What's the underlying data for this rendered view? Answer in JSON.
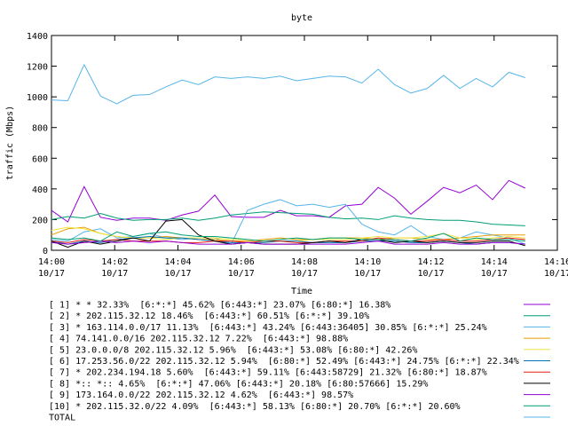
{
  "chart_data": {
    "type": "line",
    "title": "byte",
    "ylabel": "traffic (Mbps)",
    "xlabel": "Time",
    "xlim": [
      0,
      960
    ],
    "xticks": [
      {
        "value": 0,
        "label": "14:00\n10/17"
      },
      {
        "value": 120,
        "label": "14:02\n10/17"
      },
      {
        "value": 240,
        "label": "14:04\n10/17"
      },
      {
        "value": 360,
        "label": "14:06\n10/17"
      },
      {
        "value": 480,
        "label": "14:08\n10/17"
      },
      {
        "value": 600,
        "label": "14:10\n10/17"
      },
      {
        "value": 720,
        "label": "14:12\n10/17"
      },
      {
        "value": 840,
        "label": "14:14\n10/17"
      },
      {
        "value": 960,
        "label": "14:16\n10/17"
      }
    ],
    "ylim": [
      0,
      1400
    ],
    "yticks": [
      0,
      200,
      400,
      600,
      800,
      1000,
      1200,
      1400
    ],
    "x": [
      0,
      31,
      62,
      93,
      124,
      155,
      186,
      217,
      248,
      279,
      310,
      341,
      372,
      403,
      434,
      465,
      496,
      527,
      558,
      589,
      620,
      651,
      682,
      713,
      744,
      775,
      806,
      837,
      868,
      899
    ],
    "series": [
      {
        "name": "[ 1] * * 32.33%  [6:*:*] 45.62% [6:443:*] 23.07% [6:80:*] 16.38%",
        "color": "#9400d3",
        "values": [
          260,
          185,
          415,
          215,
          195,
          210,
          210,
          195,
          230,
          255,
          360,
          220,
          215,
          215,
          260,
          225,
          225,
          215,
          290,
          300,
          410,
          340,
          235,
          320,
          410,
          375,
          425,
          330,
          455,
          405
        ]
      },
      {
        "name": "[ 2] * 202.115.32.12 18.46%  [6:443:*] 60.51% [6:*:*] 39.10%",
        "color": "#009e73",
        "values": [
          200,
          220,
          210,
          240,
          210,
          195,
          200,
          200,
          210,
          195,
          210,
          230,
          240,
          250,
          245,
          240,
          235,
          215,
          205,
          210,
          200,
          225,
          210,
          200,
          195,
          195,
          185,
          170,
          165,
          160
        ]
      },
      {
        "name": "[ 3] * 163.114.0.0/17 11.13%  [6:443:*] 43.24% [6:443:36405] 30.85% [6:*:*] 25.24%",
        "color": "#56b4e9",
        "values": [
          70,
          60,
          120,
          140,
          80,
          90,
          110,
          80,
          70,
          80,
          80,
          40,
          260,
          300,
          330,
          290,
          300,
          280,
          300,
          170,
          120,
          100,
          160,
          90,
          70,
          80,
          120,
          100,
          80,
          40
        ]
      },
      {
        "name": "[ 4] 74.141.0.0/16 202.115.32.12 7.22%  [6:443:*] 98.88%",
        "color": "#e69f00",
        "values": [
          100,
          140,
          150,
          110,
          90,
          80,
          80,
          90,
          80,
          70,
          70,
          60,
          60,
          70,
          80,
          70,
          70,
          80,
          80,
          80,
          70,
          80,
          80,
          70,
          70,
          80,
          90,
          100,
          100,
          100
        ]
      },
      {
        "name": "[ 5] 23.0.0.0/8 202.115.32.12 5.96%  [6:443:*] 53.08% [6:80:*] 42.26%",
        "color": "#f0e442",
        "values": [
          130,
          150,
          140,
          110,
          90,
          80,
          80,
          70,
          80,
          80,
          80,
          70,
          70,
          60,
          60,
          60,
          70,
          70,
          70,
          80,
          90,
          80,
          80,
          90,
          110,
          80,
          70,
          80,
          90,
          80
        ]
      },
      {
        "name": "[ 6] 17.253.56.0/22 202.115.32.12 5.94%  [6:80:*] 52.49% [6:443:*] 24.75% [6:*:*] 22.34%",
        "color": "#0072b2",
        "values": [
          60,
          40,
          60,
          50,
          70,
          80,
          90,
          80,
          80,
          70,
          60,
          50,
          50,
          50,
          60,
          60,
          50,
          50,
          50,
          60,
          60,
          60,
          50,
          50,
          60,
          50,
          40,
          50,
          50,
          40
        ]
      },
      {
        "name": "[ 7] * 202.234.194.18 5.60%  [6:443:*] 59.11% [6:443:58729] 21.32% [6:80:*] 18.87%",
        "color": "#e51e10",
        "values": [
          60,
          50,
          70,
          60,
          70,
          60,
          60,
          60,
          50,
          50,
          60,
          60,
          50,
          60,
          60,
          50,
          50,
          60,
          60,
          60,
          80,
          70,
          60,
          60,
          70,
          60,
          60,
          70,
          80,
          70
        ]
      },
      {
        "name": "[ 8] *:: *:: 4.65%  [6:*:*] 47.06% [6:443:*] 20.18% [6:80:57666] 15.29%",
        "color": "#000000",
        "values": [
          60,
          20,
          60,
          40,
          60,
          80,
          60,
          190,
          200,
          100,
          60,
          40,
          50,
          40,
          40,
          40,
          50,
          60,
          50,
          70,
          70,
          50,
          60,
          50,
          60,
          50,
          50,
          60,
          60,
          30
        ]
      },
      {
        "name": "[ 9] 173.164.0.0/22 202.115.32.12 4.62%  [6:443:*] 98.57%",
        "color": "#9400d3",
        "values": [
          50,
          40,
          50,
          60,
          50,
          60,
          50,
          60,
          50,
          40,
          40,
          40,
          50,
          40,
          40,
          40,
          40,
          40,
          40,
          50,
          60,
          40,
          40,
          40,
          50,
          40,
          40,
          50,
          50,
          40
        ]
      },
      {
        "name": "[10] * 202.115.32.0/22 4.09%  [6:443:*] 58.13% [6:80:*] 20.70% [6:*:*] 20.60%",
        "color": "#009e73",
        "values": [
          80,
          70,
          80,
          60,
          120,
          90,
          110,
          120,
          100,
          90,
          90,
          80,
          70,
          60,
          70,
          80,
          70,
          80,
          80,
          70,
          70,
          70,
          60,
          80,
          110,
          60,
          80,
          70,
          70,
          60
        ]
      },
      {
        "name": "TOTAL",
        "color": "#56b4e9",
        "values": [
          980,
          975,
          1210,
          1005,
          955,
          1010,
          1015,
          1065,
          1110,
          1080,
          1130,
          1120,
          1130,
          1120,
          1135,
          1105,
          1120,
          1135,
          1130,
          1090,
          1180,
          1080,
          1025,
          1055,
          1140,
          1055,
          1120,
          1065,
          1160,
          1125
        ]
      }
    ]
  }
}
